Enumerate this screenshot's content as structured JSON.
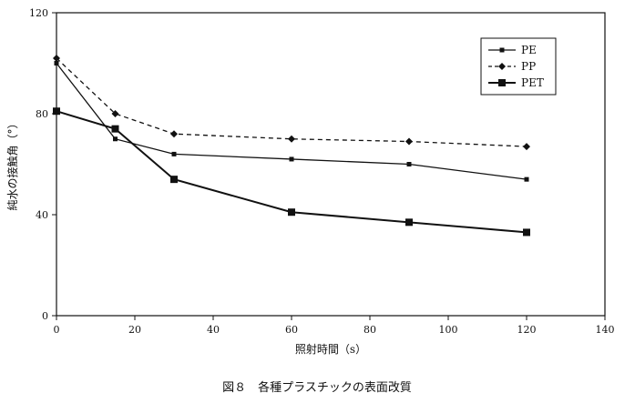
{
  "chart_data": {
    "type": "line",
    "title": "",
    "caption": "図８　各種プラスチックの表面改質",
    "xlabel": "照射時間（s）",
    "ylabel": "純水の接触角（°）",
    "xlim": [
      0,
      140
    ],
    "ylim": [
      0,
      120
    ],
    "x_ticks": [
      "0",
      "20",
      "40",
      "60",
      "80",
      "100",
      "120",
      "140"
    ],
    "y_ticks": [
      "0",
      "40",
      "80",
      "120"
    ],
    "grid": false,
    "legend_position": "top-right",
    "series": [
      {
        "name": "PE",
        "line_style": "solid",
        "marker": "small-square",
        "x": [
          0,
          15,
          30,
          60,
          90,
          120
        ],
        "y": [
          100,
          70,
          64,
          62,
          60,
          54
        ]
      },
      {
        "name": "PP",
        "line_style": "dashed",
        "marker": "diamond",
        "x": [
          0,
          15,
          30,
          60,
          90,
          120
        ],
        "y": [
          102,
          80,
          72,
          70,
          69,
          67
        ]
      },
      {
        "name": "PET",
        "line_style": "solid",
        "marker": "large-square",
        "x": [
          0,
          15,
          30,
          60,
          90,
          120
        ],
        "y": [
          81,
          74,
          54,
          41,
          37,
          33
        ]
      }
    ]
  }
}
